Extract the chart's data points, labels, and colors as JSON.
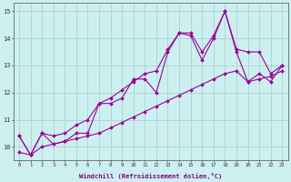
{
  "xlabel": "Windchill (Refroidissement éolien,°C)",
  "x": [
    0,
    1,
    2,
    3,
    4,
    5,
    6,
    7,
    8,
    9,
    10,
    11,
    12,
    13,
    14,
    15,
    16,
    17,
    18,
    19,
    20,
    21,
    22,
    23
  ],
  "line_data": [
    10.4,
    9.7,
    10.5,
    10.1,
    10.2,
    10.5,
    10.5,
    11.6,
    11.6,
    11.8,
    12.5,
    12.5,
    12.0,
    13.5,
    14.2,
    14.1,
    13.2,
    14.0,
    15.0,
    13.5,
    12.4,
    12.7,
    12.4,
    13.0
  ],
  "line_upper": [
    10.4,
    9.7,
    10.5,
    10.4,
    10.5,
    10.8,
    11.0,
    11.6,
    11.8,
    12.1,
    12.4,
    12.7,
    12.8,
    13.6,
    14.2,
    14.2,
    13.5,
    14.1,
    15.0,
    13.6,
    13.5,
    13.5,
    12.7,
    13.0
  ],
  "line_lower": [
    9.8,
    9.7,
    10.0,
    10.1,
    10.2,
    10.3,
    10.4,
    10.5,
    10.7,
    10.9,
    11.1,
    11.3,
    11.5,
    11.7,
    11.9,
    12.1,
    12.3,
    12.5,
    12.7,
    12.8,
    12.4,
    12.5,
    12.6,
    12.8
  ],
  "color": "#990099",
  "bg_color": "#ccf0f0",
  "grid_color": "#b0c8c8",
  "ylim": [
    9.5,
    15.3
  ],
  "xlim": [
    -0.5,
    23.5
  ],
  "yticks": [
    10,
    11,
    12,
    13,
    14,
    15
  ],
  "xticks": [
    0,
    1,
    2,
    3,
    4,
    5,
    6,
    7,
    8,
    9,
    10,
    11,
    12,
    13,
    14,
    15,
    16,
    17,
    18,
    19,
    20,
    21,
    22,
    23
  ]
}
